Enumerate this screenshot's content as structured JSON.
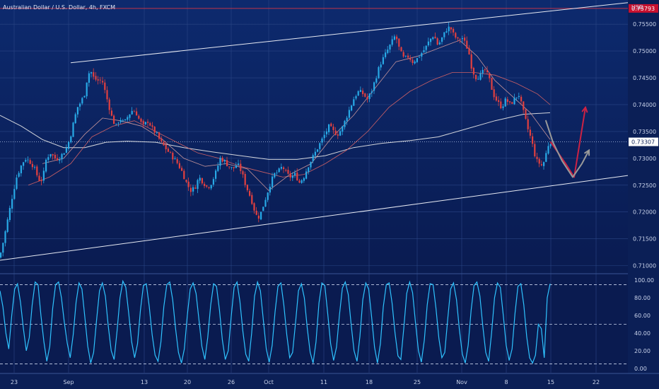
{
  "chart_data": {
    "type": "candlestick",
    "title": "Australian Dollar / U.S. Dollar, 4h, FXCM",
    "currency_label": "USD",
    "price_axis": {
      "ticks": [
        "0.75500",
        "0.75000",
        "0.74500",
        "0.74000",
        "0.73500",
        "0.73000",
        "0.72500",
        "0.72000",
        "0.71500",
        "0.71000"
      ],
      "range": [
        0.7085,
        0.7595
      ]
    },
    "time_axis": {
      "ticks": [
        "23",
        "Sep",
        "13",
        "20",
        "26",
        "Oct",
        "11",
        "18",
        "25",
        "Nov",
        "8",
        "15",
        "22"
      ]
    },
    "price_badges": {
      "resistance": {
        "label": "0.75793",
        "value": 0.75793
      },
      "current": {
        "label": "0.73307",
        "value": 0.73307
      }
    },
    "ohlc_path": [
      [
        0,
        0.7115
      ],
      [
        6,
        0.715
      ],
      [
        12,
        0.719
      ],
      [
        18,
        0.723
      ],
      [
        24,
        0.7265
      ],
      [
        30,
        0.7285
      ],
      [
        36,
        0.73
      ],
      [
        42,
        0.7295
      ],
      [
        48,
        0.7285
      ],
      [
        54,
        0.7265
      ],
      [
        58,
        0.7255
      ],
      [
        62,
        0.727
      ],
      [
        66,
        0.73
      ],
      [
        72,
        0.731
      ],
      [
        78,
        0.73
      ],
      [
        84,
        0.73
      ],
      [
        90,
        0.731
      ],
      [
        95,
        0.732
      ],
      [
        100,
        0.734
      ],
      [
        105,
        0.737
      ],
      [
        110,
        0.7395
      ],
      [
        115,
        0.7405
      ],
      [
        120,
        0.742
      ],
      [
        124,
        0.745
      ],
      [
        128,
        0.7465
      ],
      [
        133,
        0.745
      ],
      [
        138,
        0.7445
      ],
      [
        145,
        0.7445
      ],
      [
        150,
        0.742
      ],
      [
        155,
        0.7395
      ],
      [
        160,
        0.737
      ],
      [
        165,
        0.736
      ],
      [
        170,
        0.7375
      ],
      [
        176,
        0.7365
      ],
      [
        182,
        0.738
      ],
      [
        188,
        0.739
      ],
      [
        193,
        0.7385
      ],
      [
        198,
        0.737
      ],
      [
        203,
        0.736
      ],
      [
        210,
        0.737
      ],
      [
        216,
        0.7355
      ],
      [
        222,
        0.7345
      ],
      [
        228,
        0.733
      ],
      [
        234,
        0.732
      ],
      [
        240,
        0.731
      ],
      [
        246,
        0.73
      ],
      [
        252,
        0.729
      ],
      [
        258,
        0.7275
      ],
      [
        264,
        0.7255
      ],
      [
        270,
        0.724
      ],
      [
        276,
        0.7245
      ],
      [
        282,
        0.7265
      ],
      [
        288,
        0.7255
      ],
      [
        294,
        0.7245
      ],
      [
        300,
        0.7255
      ],
      [
        306,
        0.7275
      ],
      [
        312,
        0.73
      ],
      [
        318,
        0.7295
      ],
      [
        324,
        0.7285
      ],
      [
        330,
        0.728
      ],
      [
        336,
        0.729
      ],
      [
        342,
        0.7275
      ],
      [
        348,
        0.725
      ],
      [
        354,
        0.723
      ],
      [
        358,
        0.7215
      ],
      [
        362,
        0.7195
      ],
      [
        366,
        0.719
      ],
      [
        370,
        0.72
      ],
      [
        376,
        0.7225
      ],
      [
        382,
        0.725
      ],
      [
        388,
        0.727
      ],
      [
        394,
        0.7275
      ],
      [
        400,
        0.7285
      ],
      [
        406,
        0.727
      ],
      [
        412,
        0.7265
      ],
      [
        418,
        0.727
      ],
      [
        424,
        0.7255
      ],
      [
        430,
        0.7265
      ],
      [
        436,
        0.7285
      ],
      [
        442,
        0.73
      ],
      [
        448,
        0.7315
      ],
      [
        454,
        0.733
      ],
      [
        460,
        0.7345
      ],
      [
        466,
        0.736
      ],
      [
        472,
        0.735
      ],
      [
        478,
        0.7345
      ],
      [
        484,
        0.7355
      ],
      [
        490,
        0.7375
      ],
      [
        496,
        0.7395
      ],
      [
        502,
        0.7415
      ],
      [
        508,
        0.7425
      ],
      [
        514,
        0.742
      ],
      [
        520,
        0.741
      ],
      [
        526,
        0.7425
      ],
      [
        532,
        0.745
      ],
      [
        538,
        0.7475
      ],
      [
        544,
        0.749
      ],
      [
        550,
        0.7505
      ],
      [
        556,
        0.752
      ],
      [
        560,
        0.753
      ],
      [
        566,
        0.75
      ],
      [
        572,
        0.7485
      ],
      [
        578,
        0.749
      ],
      [
        584,
        0.748
      ],
      [
        590,
        0.7485
      ],
      [
        596,
        0.7495
      ],
      [
        602,
        0.7505
      ],
      [
        608,
        0.752
      ],
      [
        614,
        0.753
      ],
      [
        620,
        0.751
      ],
      [
        626,
        0.7525
      ],
      [
        632,
        0.754
      ],
      [
        637,
        0.7545
      ],
      [
        642,
        0.753
      ],
      [
        648,
        0.752
      ],
      [
        654,
        0.7525
      ],
      [
        660,
        0.751
      ],
      [
        665,
        0.749
      ],
      [
        668,
        0.7465
      ],
      [
        674,
        0.745
      ],
      [
        680,
        0.7455
      ],
      [
        686,
        0.7465
      ],
      [
        692,
        0.745
      ],
      [
        698,
        0.742
      ],
      [
        704,
        0.7405
      ],
      [
        710,
        0.7395
      ],
      [
        716,
        0.741
      ],
      [
        722,
        0.74
      ],
      [
        728,
        0.741
      ],
      [
        734,
        0.742
      ],
      [
        740,
        0.739
      ],
      [
        744,
        0.737
      ],
      [
        748,
        0.735
      ],
      [
        752,
        0.7335
      ],
      [
        756,
        0.731
      ],
      [
        760,
        0.7295
      ],
      [
        764,
        0.729
      ],
      [
        768,
        0.7285
      ],
      [
        772,
        0.7305
      ],
      [
        776,
        0.7325
      ],
      [
        778,
        0.7331
      ]
    ],
    "moving_averages": [
      {
        "color": "#e8e8e8",
        "points": [
          [
            0,
            0.738
          ],
          [
            30,
            0.736
          ],
          [
            60,
            0.7335
          ],
          [
            90,
            0.732
          ],
          [
            120,
            0.732
          ],
          [
            150,
            0.733
          ],
          [
            180,
            0.7332
          ],
          [
            220,
            0.733
          ],
          [
            260,
            0.732
          ],
          [
            300,
            0.7312
          ],
          [
            340,
            0.7305
          ],
          [
            380,
            0.7298
          ],
          [
            420,
            0.7298
          ],
          [
            460,
            0.7305
          ],
          [
            500,
            0.732
          ],
          [
            540,
            0.7328
          ],
          [
            580,
            0.7333
          ],
          [
            620,
            0.734
          ],
          [
            660,
            0.7355
          ],
          [
            700,
            0.737
          ],
          [
            740,
            0.7382
          ],
          [
            778,
            0.7385
          ]
        ]
      },
      {
        "color": "#e06666",
        "points": [
          [
            40,
            0.725
          ],
          [
            70,
            0.7265
          ],
          [
            100,
            0.729
          ],
          [
            130,
            0.734
          ],
          [
            160,
            0.736
          ],
          [
            190,
            0.737
          ],
          [
            220,
            0.735
          ],
          [
            250,
            0.733
          ],
          [
            280,
            0.731
          ],
          [
            310,
            0.73
          ],
          [
            340,
            0.7285
          ],
          [
            370,
            0.7275
          ],
          [
            400,
            0.7265
          ],
          [
            430,
            0.727
          ],
          [
            460,
            0.729
          ],
          [
            490,
            0.7315
          ],
          [
            520,
            0.735
          ],
          [
            550,
            0.7395
          ],
          [
            580,
            0.7425
          ],
          [
            610,
            0.7445
          ],
          [
            640,
            0.746
          ],
          [
            670,
            0.746
          ],
          [
            700,
            0.7455
          ],
          [
            730,
            0.744
          ],
          [
            760,
            0.742
          ],
          [
            778,
            0.74
          ]
        ]
      },
      {
        "color": "#d9a0a0",
        "points": [
          [
            60,
            0.729
          ],
          [
            90,
            0.73
          ],
          [
            120,
            0.7345
          ],
          [
            145,
            0.7375
          ],
          [
            170,
            0.737
          ],
          [
            200,
            0.736
          ],
          [
            230,
            0.7335
          ],
          [
            260,
            0.73
          ],
          [
            290,
            0.7285
          ],
          [
            320,
            0.729
          ],
          [
            350,
            0.728
          ],
          [
            380,
            0.724
          ],
          [
            410,
            0.727
          ],
          [
            440,
            0.729
          ],
          [
            470,
            0.734
          ],
          [
            500,
            0.738
          ],
          [
            530,
            0.743
          ],
          [
            560,
            0.748
          ],
          [
            590,
            0.749
          ],
          [
            620,
            0.7505
          ],
          [
            650,
            0.752
          ],
          [
            675,
            0.749
          ],
          [
            700,
            0.7445
          ],
          [
            725,
            0.7415
          ],
          [
            750,
            0.7385
          ],
          [
            778,
            0.7335
          ]
        ]
      }
    ],
    "trend_lines": [
      {
        "name": "upper",
        "from": [
          100,
          0.7478
        ],
        "to": [
          888,
          0.759
        ]
      },
      {
        "name": "lower",
        "from": [
          0,
          0.711
        ],
        "to": [
          888,
          0.7268
        ]
      }
    ],
    "projections": [
      {
        "color": "#cc2244",
        "points": [
          [
            779,
            0.733
          ],
          [
            800,
            0.729
          ],
          [
            812,
            0.7265
          ],
          [
            820,
            0.733
          ],
          [
            828,
            0.7395
          ]
        ],
        "arrow": true
      },
      {
        "color": "#999999",
        "points": [
          [
            772,
            0.737
          ],
          [
            782,
            0.733
          ],
          [
            795,
            0.7295
          ],
          [
            810,
            0.7265
          ],
          [
            823,
            0.729
          ],
          [
            833,
            0.7315
          ]
        ],
        "arrow": true
      }
    ],
    "oscillator": {
      "ticks": [
        "100.00",
        "80.00",
        "60.00",
        "40.00",
        "20.00",
        "0.00"
      ],
      "range": [
        -5,
        105
      ],
      "levels": [
        95,
        50,
        5
      ],
      "values": [
        88,
        70,
        40,
        22,
        60,
        90,
        96,
        75,
        45,
        20,
        35,
        72,
        98,
        95,
        60,
        30,
        8,
        25,
        68,
        95,
        98,
        80,
        52,
        28,
        12,
        38,
        75,
        97,
        90,
        58,
        25,
        6,
        18,
        55,
        88,
        97,
        82,
        48,
        20,
        10,
        42,
        80,
        99,
        92,
        62,
        30,
        12,
        28,
        66,
        94,
        96,
        70,
        38,
        15,
        8,
        30,
        70,
        95,
        98,
        78,
        45,
        18,
        6,
        22,
        60,
        90,
        97,
        85,
        55,
        25,
        10,
        35,
        72,
        96,
        93,
        66,
        32,
        10,
        20,
        58,
        92,
        98,
        76,
        42,
        16,
        8,
        40,
        82,
        98,
        88,
        55,
        22,
        7,
        26,
        64,
        93,
        97,
        72,
        38,
        12,
        18,
        52,
        88,
        96,
        80,
        46,
        18,
        6,
        30,
        74,
        97,
        94,
        62,
        28,
        9,
        24,
        60,
        91,
        98,
        84,
        50,
        20,
        8,
        36,
        78,
        97,
        90,
        58,
        24,
        6,
        28,
        70,
        95,
        97,
        74,
        40,
        14,
        10,
        46,
        85,
        98,
        86,
        52,
        20,
        7,
        32,
        72,
        96,
        95,
        68,
        34,
        12,
        18,
        56,
        90,
        97,
        78,
        44,
        16,
        6,
        26,
        66,
        94,
        98,
        82,
        48,
        18,
        8,
        40,
        80,
        97,
        92,
        60,
        26,
        9,
        22,
        62,
        93,
        96,
        72,
        36,
        12,
        6,
        15,
        50,
        45,
        12,
        80,
        96
      ]
    }
  }
}
